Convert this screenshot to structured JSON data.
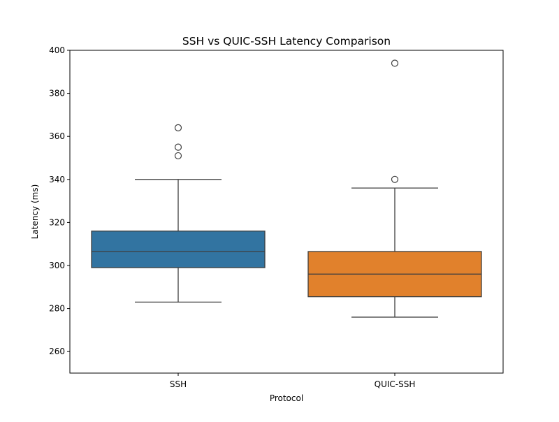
{
  "chart_data": {
    "type": "box",
    "title": "SSH vs QUIC-SSH Latency Comparison",
    "xlabel": "Protocol",
    "ylabel": "Latency (ms)",
    "ylim": [
      250,
      400
    ],
    "yticks": [
      260,
      280,
      300,
      320,
      340,
      360,
      380,
      400
    ],
    "categories": [
      "SSH",
      "QUIC-SSH"
    ],
    "grid": false,
    "series": [
      {
        "category": "SSH",
        "color": "#3274a1",
        "whisker_low": 283,
        "q1": 299,
        "median": 306.5,
        "q3": 316,
        "whisker_high": 340,
        "outliers": [
          351,
          355,
          364
        ]
      },
      {
        "category": "QUIC-SSH",
        "color": "#e1812c",
        "whisker_low": 276,
        "q1": 285.5,
        "median": 296,
        "q3": 306.5,
        "whisker_high": 336,
        "outliers": [
          340,
          394
        ]
      }
    ]
  }
}
